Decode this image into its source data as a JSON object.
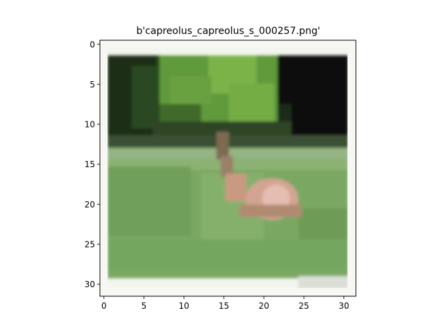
{
  "figure": {
    "title": "b'capreolus_capreolus_s_000257.png'"
  },
  "image": {
    "grid_size": [
      32,
      32
    ],
    "subject": "roe deer lying in green grass beneath a tree, low-resolution pixelated photo",
    "colors": {
      "tree_foliage": "#5f9a3a",
      "dark_foliage": "#1f3416",
      "night_sky": "#080c0a",
      "grass": "#7aa862",
      "deer_body": "#d2a08e",
      "border": "#f5f6f2"
    }
  },
  "axes": {
    "x_ticks": [
      "0",
      "5",
      "10",
      "15",
      "20",
      "25",
      "30"
    ],
    "y_ticks": [
      "0",
      "5",
      "10",
      "15",
      "20",
      "25",
      "30"
    ],
    "x_range": [
      -0.5,
      31.5
    ],
    "y_range": [
      31.5,
      -0.5
    ]
  }
}
